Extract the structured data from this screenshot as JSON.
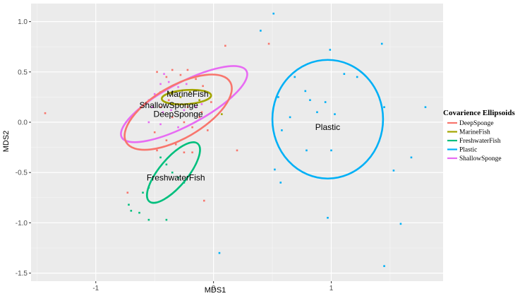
{
  "chart_data": {
    "type": "scatter",
    "title": "",
    "xlabel": "MDS1",
    "ylabel": "MDS2",
    "xlim": [
      -1.55,
      1.95
    ],
    "ylim": [
      -1.58,
      1.18
    ],
    "x_ticks": [
      -1,
      0,
      1
    ],
    "x_tick_labels": [
      "-1",
      "0",
      "1"
    ],
    "y_ticks": [
      1.0,
      0.5,
      0.0,
      -0.5,
      -1.0,
      -1.5
    ],
    "y_tick_labels": [
      "1.0",
      "0.5",
      "0.0",
      "-0.5",
      "-1.0",
      "-1.5"
    ],
    "grid": true,
    "background": "#ebebeb",
    "legend": {
      "title": "Covarience Ellipsoids",
      "placement": "right",
      "entries": [
        "DeepSponge",
        "MarineFish",
        "FreshwaterFish",
        "Plastic",
        "ShallowSponge"
      ]
    },
    "series": [
      {
        "name": "DeepSponge",
        "color": "#f8766d",
        "points": [
          [
            -1.43,
            0.09
          ],
          [
            -0.48,
            0.5
          ],
          [
            -0.4,
            0.45
          ],
          [
            -0.35,
            0.52
          ],
          [
            -0.28,
            0.47
          ],
          [
            -0.22,
            0.52
          ],
          [
            -0.15,
            0.43
          ],
          [
            -0.09,
            0.36
          ],
          [
            -0.45,
            0.3
          ],
          [
            -0.38,
            0.22
          ],
          [
            -0.3,
            0.18
          ],
          [
            -0.22,
            0.15
          ],
          [
            -0.12,
            0.05
          ],
          [
            -0.05,
            -0.08
          ],
          [
            -0.35,
            0.05
          ],
          [
            -0.25,
            0.0
          ],
          [
            -0.18,
            -0.05
          ],
          [
            -0.45,
            0.15
          ],
          [
            -0.5,
            -0.1
          ],
          [
            -0.4,
            -0.18
          ],
          [
            -0.32,
            -0.22
          ],
          [
            -0.25,
            -0.3
          ],
          [
            -0.18,
            -0.3
          ],
          [
            -0.48,
            -0.28
          ],
          [
            -0.1,
            0.1
          ],
          [
            -0.02,
            0.2
          ],
          [
            0.1,
            0.76
          ],
          [
            0.47,
            0.78
          ],
          [
            0.2,
            -0.28
          ],
          [
            -0.73,
            -0.7
          ],
          [
            -0.08,
            -0.78
          ]
        ]
      },
      {
        "name": "MarineFish",
        "color": "#a3a500",
        "points": [
          [
            -0.35,
            0.28
          ],
          [
            -0.28,
            0.25
          ],
          [
            -0.2,
            0.3
          ],
          [
            -0.12,
            0.22
          ],
          [
            0.07,
            0.08
          ]
        ]
      },
      {
        "name": "FreshwaterFish",
        "color": "#00bf7d",
        "points": [
          [
            -0.45,
            -0.35
          ],
          [
            -0.4,
            -0.42
          ],
          [
            -0.35,
            -0.5
          ],
          [
            -0.3,
            -0.55
          ],
          [
            -0.25,
            -0.6
          ],
          [
            -0.55,
            -0.65
          ],
          [
            -0.6,
            -0.7
          ],
          [
            -0.72,
            -0.82
          ],
          [
            -0.7,
            -0.88
          ],
          [
            -0.63,
            -0.9
          ],
          [
            -0.55,
            -0.97
          ],
          [
            -0.4,
            -0.97
          ]
        ]
      },
      {
        "name": "Plastic",
        "color": "#00b0f6",
        "points": [
          [
            0.51,
            1.08
          ],
          [
            0.4,
            0.91
          ],
          [
            1.43,
            0.78
          ],
          [
            0.99,
            0.72
          ],
          [
            1.11,
            0.48
          ],
          [
            1.22,
            0.45
          ],
          [
            0.69,
            0.45
          ],
          [
            0.78,
            0.31
          ],
          [
            0.55,
            0.25
          ],
          [
            0.95,
            0.2
          ],
          [
            0.82,
            0.22
          ],
          [
            1.45,
            0.15
          ],
          [
            1.8,
            0.15
          ],
          [
            0.88,
            0.1
          ],
          [
            1.03,
            0.08
          ],
          [
            0.65,
            0.05
          ],
          [
            0.58,
            -0.08
          ],
          [
            0.79,
            -0.28
          ],
          [
            1.0,
            -0.28
          ],
          [
            1.68,
            -0.35
          ],
          [
            0.52,
            -0.47
          ],
          [
            1.53,
            -0.48
          ],
          [
            0.57,
            -0.6
          ],
          [
            0.97,
            -0.95
          ],
          [
            1.59,
            -1.01
          ],
          [
            0.05,
            -1.3
          ],
          [
            1.45,
            -1.43
          ]
        ]
      },
      {
        "name": "ShallowSponge",
        "color": "#e76bf3",
        "points": [
          [
            -0.55,
            0.22
          ],
          [
            -0.5,
            0.28
          ],
          [
            -0.45,
            0.38
          ],
          [
            -0.38,
            0.4
          ],
          [
            -0.3,
            0.35
          ],
          [
            -0.23,
            0.38
          ],
          [
            -0.52,
            0.15
          ],
          [
            -0.43,
            0.1
          ],
          [
            -0.36,
            0.12
          ],
          [
            -0.25,
            0.12
          ],
          [
            -0.15,
            0.15
          ],
          [
            -0.1,
            0.18
          ],
          [
            -0.55,
            0.0
          ],
          [
            -0.45,
            -0.02
          ],
          [
            -0.3,
            -0.05
          ],
          [
            -0.42,
            0.48
          ]
        ]
      }
    ],
    "ellipses": [
      {
        "name": "ShallowSponge",
        "label": "ShallowSponge",
        "color": "#e76bf3",
        "cx": -0.25,
        "cy": 0.18,
        "rx": 0.6,
        "ry": 0.21,
        "angle_deg": 28
      },
      {
        "name": "DeepSponge",
        "label": "DeepSponge",
        "color": "#f8766d",
        "cx": -0.3,
        "cy": 0.1,
        "rx": 0.51,
        "ry": 0.26,
        "angle_deg": 30
      },
      {
        "name": "MarineFish",
        "label": "MarineFish",
        "color": "#a3a500",
        "cx": -0.23,
        "cy": 0.25,
        "rx": 0.21,
        "ry": 0.07,
        "angle_deg": 4
      },
      {
        "name": "FreshwaterFish",
        "label": "FreshwaterFish",
        "color": "#00bf7d",
        "cx": -0.34,
        "cy": -0.5,
        "rx": 0.32,
        "ry": 0.14,
        "angle_deg": 50
      },
      {
        "name": "Plastic",
        "label": "Plastic",
        "color": "#00b0f6",
        "cx": 0.97,
        "cy": 0.03,
        "rx": 0.47,
        "ry": 0.59,
        "angle_deg": 0
      }
    ],
    "ellipse_label_positions": [
      {
        "label": "MarineFish",
        "x": -0.22,
        "y": 0.28
      },
      {
        "label": "ShallowSponge",
        "x": -0.38,
        "y": 0.17
      },
      {
        "label": "DeepSponge",
        "x": -0.3,
        "y": 0.08
      },
      {
        "label": "FreshwaterFish",
        "x": -0.32,
        "y": -0.55
      },
      {
        "label": "Plastic",
        "x": 0.97,
        "y": -0.05
      }
    ]
  }
}
